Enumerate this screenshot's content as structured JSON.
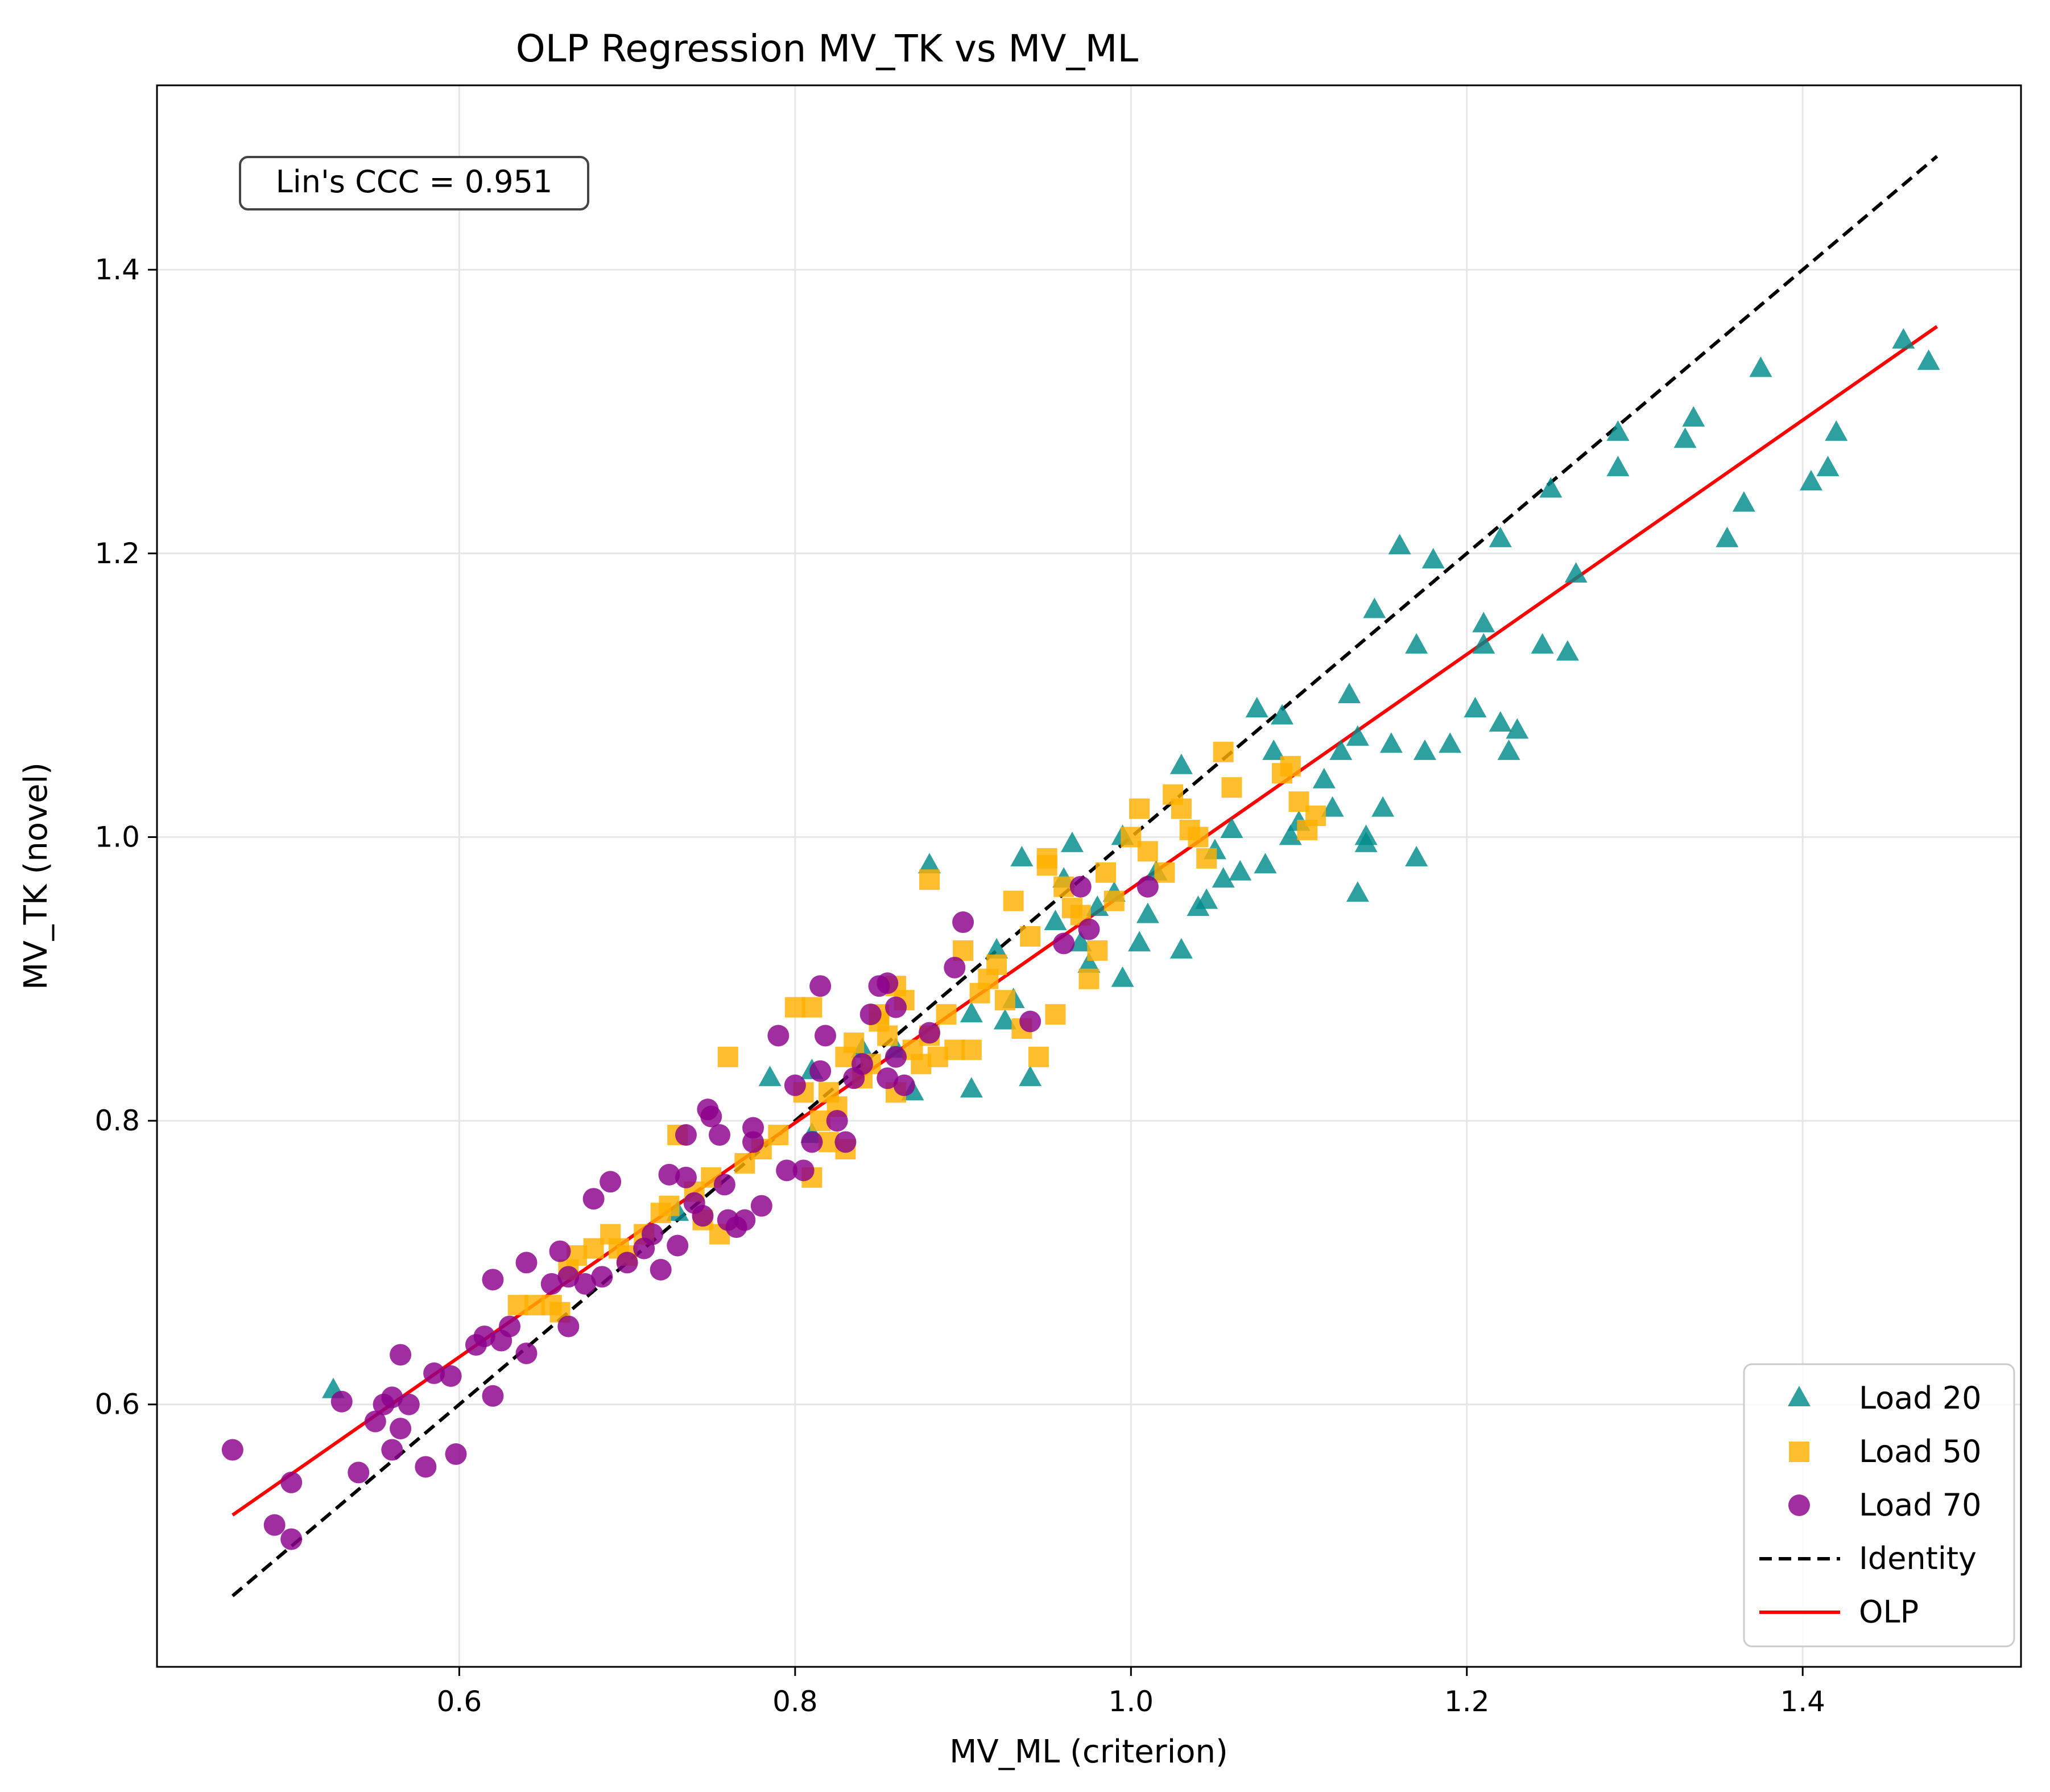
{
  "chart_data": {
    "type": "scatter",
    "title": "OLP Regression MV_TK vs MV_ML",
    "xlabel": "MV_ML (criterion)",
    "ylabel": "MV_TK (novel)",
    "xlim": [
      0.42,
      1.53
    ],
    "ylim": [
      0.415,
      1.53
    ],
    "xticks": [
      0.6,
      0.8,
      1.0,
      1.2,
      1.4
    ],
    "xtick_labels": [
      "0.6",
      "0.8",
      "1.0",
      "1.2",
      "1.4"
    ],
    "yticks": [
      0.6,
      0.8,
      1.0,
      1.2,
      1.4
    ],
    "ytick_labels": [
      "0.6",
      "0.8",
      "1.0",
      "1.2",
      "1.4"
    ],
    "grid": true,
    "legend_position": "bottom-right",
    "annotation": "Lin's CCC = 0.951",
    "series": [
      {
        "name": "Load 20",
        "marker": "triangle",
        "color": "#008b8b",
        "points": [
          [
            0.525,
            0.61
          ],
          [
            0.73,
            0.735
          ],
          [
            0.785,
            0.83
          ],
          [
            0.81,
            0.835
          ],
          [
            0.81,
            0.79
          ],
          [
            0.84,
            0.85
          ],
          [
            0.86,
            0.85
          ],
          [
            0.87,
            0.82
          ],
          [
            0.88,
            0.98
          ],
          [
            0.905,
            0.822
          ],
          [
            0.905,
            0.875
          ],
          [
            0.92,
            0.92
          ],
          [
            0.925,
            0.87
          ],
          [
            0.93,
            0.885
          ],
          [
            0.935,
            0.985
          ],
          [
            0.94,
            0.83
          ],
          [
            0.955,
            0.94
          ],
          [
            0.96,
            0.97
          ],
          [
            0.965,
            0.995
          ],
          [
            0.97,
            0.925
          ],
          [
            0.975,
            0.91
          ],
          [
            0.98,
            0.95
          ],
          [
            0.99,
            0.96
          ],
          [
            0.995,
            1.0
          ],
          [
            0.995,
            0.9
          ],
          [
            1.005,
            0.925
          ],
          [
            1.01,
            0.945
          ],
          [
            1.015,
            0.975
          ],
          [
            1.03,
            1.05
          ],
          [
            1.03,
            0.92
          ],
          [
            1.04,
            0.95
          ],
          [
            1.045,
            0.955
          ],
          [
            1.05,
            0.99
          ],
          [
            1.055,
            0.97
          ],
          [
            1.06,
            1.005
          ],
          [
            1.065,
            0.975
          ],
          [
            1.075,
            1.09
          ],
          [
            1.08,
            0.98
          ],
          [
            1.085,
            1.06
          ],
          [
            1.09,
            1.085
          ],
          [
            1.095,
            1.0
          ],
          [
            1.1,
            1.01
          ],
          [
            1.115,
            1.04
          ],
          [
            1.12,
            1.02
          ],
          [
            1.125,
            1.06
          ],
          [
            1.13,
            1.1
          ],
          [
            1.135,
            0.96
          ],
          [
            1.135,
            1.07
          ],
          [
            1.14,
            1.0
          ],
          [
            1.14,
            0.995
          ],
          [
            1.145,
            1.16
          ],
          [
            1.15,
            1.02
          ],
          [
            1.155,
            1.065
          ],
          [
            1.16,
            1.205
          ],
          [
            1.17,
            1.135
          ],
          [
            1.17,
            0.985
          ],
          [
            1.175,
            1.06
          ],
          [
            1.18,
            1.195
          ],
          [
            1.19,
            1.065
          ],
          [
            1.205,
            1.09
          ],
          [
            1.21,
            1.15
          ],
          [
            1.21,
            1.135
          ],
          [
            1.22,
            1.21
          ],
          [
            1.22,
            1.08
          ],
          [
            1.225,
            1.06
          ],
          [
            1.23,
            1.075
          ],
          [
            1.245,
            1.135
          ],
          [
            1.25,
            1.245
          ],
          [
            1.26,
            1.13
          ],
          [
            1.265,
            1.185
          ],
          [
            1.29,
            1.285
          ],
          [
            1.29,
            1.26
          ],
          [
            1.33,
            1.28
          ],
          [
            1.335,
            1.295
          ],
          [
            1.355,
            1.21
          ],
          [
            1.365,
            1.235
          ],
          [
            1.375,
            1.33
          ],
          [
            1.405,
            1.25
          ],
          [
            1.415,
            1.26
          ],
          [
            1.42,
            1.285
          ],
          [
            1.46,
            1.35
          ],
          [
            1.475,
            1.335
          ]
        ]
      },
      {
        "name": "Load 50",
        "marker": "square",
        "color": "#ffb000",
        "points": [
          [
            0.635,
            0.67
          ],
          [
            0.645,
            0.67
          ],
          [
            0.655,
            0.67
          ],
          [
            0.66,
            0.665
          ],
          [
            0.665,
            0.695
          ],
          [
            0.67,
            0.705
          ],
          [
            0.68,
            0.71
          ],
          [
            0.69,
            0.72
          ],
          [
            0.695,
            0.71
          ],
          [
            0.7,
            0.705
          ],
          [
            0.71,
            0.72
          ],
          [
            0.72,
            0.735
          ],
          [
            0.725,
            0.74
          ],
          [
            0.73,
            0.79
          ],
          [
            0.74,
            0.75
          ],
          [
            0.745,
            0.73
          ],
          [
            0.75,
            0.76
          ],
          [
            0.755,
            0.72
          ],
          [
            0.76,
            0.845
          ],
          [
            0.77,
            0.77
          ],
          [
            0.78,
            0.78
          ],
          [
            0.79,
            0.79
          ],
          [
            0.8,
            0.88
          ],
          [
            0.805,
            0.82
          ],
          [
            0.81,
            0.76
          ],
          [
            0.81,
            0.88
          ],
          [
            0.815,
            0.8
          ],
          [
            0.82,
            0.82
          ],
          [
            0.825,
            0.81
          ],
          [
            0.83,
            0.845
          ],
          [
            0.83,
            0.78
          ],
          [
            0.835,
            0.855
          ],
          [
            0.84,
            0.83
          ],
          [
            0.845,
            0.84
          ],
          [
            0.85,
            0.87
          ],
          [
            0.855,
            0.86
          ],
          [
            0.86,
            0.82
          ],
          [
            0.865,
            0.885
          ],
          [
            0.87,
            0.85
          ],
          [
            0.875,
            0.84
          ],
          [
            0.88,
            0.86
          ],
          [
            0.885,
            0.845
          ],
          [
            0.89,
            0.875
          ],
          [
            0.895,
            0.85
          ],
          [
            0.9,
            0.92
          ],
          [
            0.905,
            0.85
          ],
          [
            0.91,
            0.89
          ],
          [
            0.915,
            0.9
          ],
          [
            0.92,
            0.91
          ],
          [
            0.925,
            0.885
          ],
          [
            0.93,
            0.955
          ],
          [
            0.935,
            0.865
          ],
          [
            0.94,
            0.93
          ],
          [
            0.945,
            0.845
          ],
          [
            0.95,
            0.985
          ],
          [
            0.955,
            0.875
          ],
          [
            0.96,
            0.965
          ],
          [
            0.965,
            0.95
          ],
          [
            0.97,
            0.945
          ],
          [
            0.975,
            0.9
          ],
          [
            0.98,
            0.92
          ],
          [
            0.985,
            0.975
          ],
          [
            0.99,
            0.955
          ],
          [
            1.0,
            1.0
          ],
          [
            1.005,
            1.02
          ],
          [
            1.01,
            0.99
          ],
          [
            1.02,
            0.975
          ],
          [
            1.025,
            1.03
          ],
          [
            1.03,
            1.02
          ],
          [
            1.035,
            1.005
          ],
          [
            1.04,
            1.0
          ],
          [
            1.045,
            0.985
          ],
          [
            1.055,
            1.06
          ],
          [
            1.06,
            1.035
          ],
          [
            1.09,
            1.045
          ],
          [
            1.095,
            1.05
          ],
          [
            1.1,
            1.025
          ],
          [
            1.105,
            1.005
          ],
          [
            1.11,
            1.015
          ],
          [
            0.85,
            0.875
          ],
          [
            0.86,
            0.895
          ],
          [
            0.88,
            0.97
          ],
          [
            0.95,
            0.98
          ],
          [
            0.82,
            0.785
          ]
        ]
      },
      {
        "name": "Load 70",
        "marker": "circle",
        "color": "#8b008b",
        "points": [
          [
            0.465,
            0.568
          ],
          [
            0.49,
            0.515
          ],
          [
            0.5,
            0.505
          ],
          [
            0.5,
            0.545
          ],
          [
            0.53,
            0.602
          ],
          [
            0.54,
            0.552
          ],
          [
            0.55,
            0.588
          ],
          [
            0.555,
            0.6
          ],
          [
            0.56,
            0.568
          ],
          [
            0.56,
            0.605
          ],
          [
            0.565,
            0.583
          ],
          [
            0.565,
            0.635
          ],
          [
            0.57,
            0.6
          ],
          [
            0.58,
            0.556
          ],
          [
            0.585,
            0.622
          ],
          [
            0.595,
            0.62
          ],
          [
            0.598,
            0.565
          ],
          [
            0.61,
            0.642
          ],
          [
            0.615,
            0.648
          ],
          [
            0.62,
            0.688
          ],
          [
            0.62,
            0.606
          ],
          [
            0.625,
            0.645
          ],
          [
            0.63,
            0.655
          ],
          [
            0.64,
            0.7
          ],
          [
            0.64,
            0.636
          ],
          [
            0.655,
            0.685
          ],
          [
            0.66,
            0.708
          ],
          [
            0.665,
            0.69
          ],
          [
            0.665,
            0.655
          ],
          [
            0.675,
            0.685
          ],
          [
            0.68,
            0.745
          ],
          [
            0.685,
            0.69
          ],
          [
            0.69,
            0.757
          ],
          [
            0.7,
            0.7
          ],
          [
            0.71,
            0.71
          ],
          [
            0.715,
            0.72
          ],
          [
            0.72,
            0.695
          ],
          [
            0.725,
            0.762
          ],
          [
            0.73,
            0.712
          ],
          [
            0.735,
            0.76
          ],
          [
            0.735,
            0.79
          ],
          [
            0.74,
            0.742
          ],
          [
            0.745,
            0.733
          ],
          [
            0.748,
            0.808
          ],
          [
            0.75,
            0.803
          ],
          [
            0.755,
            0.79
          ],
          [
            0.758,
            0.755
          ],
          [
            0.76,
            0.73
          ],
          [
            0.765,
            0.725
          ],
          [
            0.77,
            0.73
          ],
          [
            0.775,
            0.785
          ],
          [
            0.775,
            0.795
          ],
          [
            0.78,
            0.74
          ],
          [
            0.79,
            0.86
          ],
          [
            0.795,
            0.765
          ],
          [
            0.8,
            0.825
          ],
          [
            0.805,
            0.765
          ],
          [
            0.81,
            0.785
          ],
          [
            0.815,
            0.835
          ],
          [
            0.815,
            0.895
          ],
          [
            0.818,
            0.86
          ],
          [
            0.825,
            0.8
          ],
          [
            0.83,
            0.785
          ],
          [
            0.84,
            0.84
          ],
          [
            0.845,
            0.875
          ],
          [
            0.85,
            0.895
          ],
          [
            0.855,
            0.897
          ],
          [
            0.86,
            0.88
          ],
          [
            0.86,
            0.845
          ],
          [
            0.865,
            0.825
          ],
          [
            0.88,
            0.862
          ],
          [
            0.895,
            0.908
          ],
          [
            0.9,
            0.94
          ],
          [
            0.94,
            0.87
          ],
          [
            0.96,
            0.925
          ],
          [
            0.97,
            0.965
          ],
          [
            0.975,
            0.935
          ],
          [
            1.01,
            0.965
          ],
          [
            0.855,
            0.83
          ],
          [
            0.835,
            0.83
          ]
        ]
      }
    ],
    "lines": [
      {
        "name": "Identity",
        "color": "#000000",
        "style": "dashed",
        "x": [
          0.465,
          1.48
        ],
        "y": [
          0.465,
          1.48
        ]
      },
      {
        "name": "OLP",
        "color": "#ff0000",
        "style": "solid",
        "x": [
          0.465,
          1.48
        ],
        "y": [
          0.522,
          1.36
        ]
      }
    ],
    "legend": [
      "Load 20",
      "Load 50",
      "Load 70",
      "Identity",
      "OLP"
    ]
  }
}
